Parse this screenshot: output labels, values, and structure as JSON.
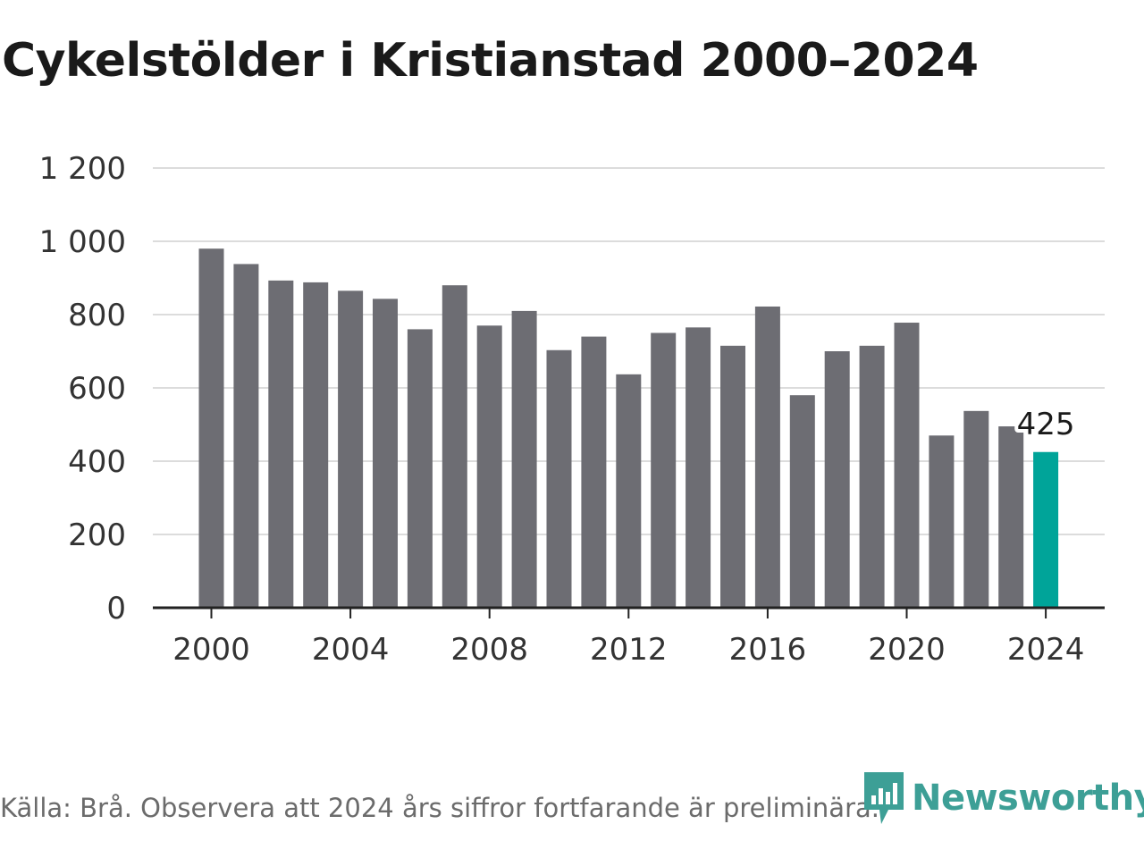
{
  "title": "Cykelstölder i Kristianstad 2000–2024",
  "source": "Källa: Brå. Observera att 2024 års siffror fortfarande är preliminära.",
  "brand": {
    "name": "Newsworthy",
    "icon": "newsworthy-logo-icon",
    "color": "#3d9f96"
  },
  "colors": {
    "bar": "#6d6d73",
    "highlight": "#00a499",
    "grid": "#dcdcdc",
    "axis": "#222222"
  },
  "chart_data": {
    "type": "bar",
    "title": "Cykelstölder i Kristianstad 2000–2024",
    "xlabel": "",
    "ylabel": "",
    "x": [
      2000,
      2001,
      2002,
      2003,
      2004,
      2005,
      2006,
      2007,
      2008,
      2009,
      2010,
      2011,
      2012,
      2013,
      2014,
      2015,
      2016,
      2017,
      2018,
      2019,
      2020,
      2021,
      2022,
      2023,
      2024
    ],
    "values": [
      980,
      938,
      893,
      888,
      865,
      843,
      760,
      880,
      770,
      810,
      703,
      740,
      637,
      750,
      765,
      715,
      822,
      580,
      700,
      715,
      778,
      470,
      537,
      495,
      425
    ],
    "ylim": [
      0,
      1200
    ],
    "yticks": [
      0,
      200,
      400,
      600,
      800,
      1000,
      1200
    ],
    "ytick_labels": [
      "0",
      "200",
      "400",
      "600",
      "800",
      "1 000",
      "1 200"
    ],
    "xticks": [
      2000,
      2004,
      2008,
      2012,
      2016,
      2020,
      2024
    ],
    "xtick_labels": [
      "2000",
      "2004",
      "2008",
      "2012",
      "2016",
      "2020",
      "2024"
    ],
    "highlight": {
      "x": 2024,
      "label": "425"
    },
    "grid": true,
    "legend": "none"
  }
}
